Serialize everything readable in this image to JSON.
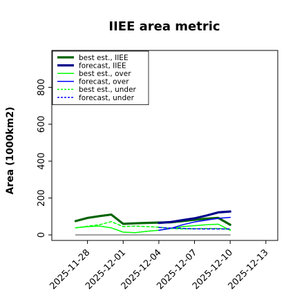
{
  "chart_data": {
    "type": "line",
    "title": "IIEE area metric",
    "xlabel": "",
    "ylabel": "Area (1000km2)",
    "xlim": [
      "2025-11-25",
      "2025-12-14"
    ],
    "ylim": [
      -30,
      1000
    ],
    "y_ticks": [
      0,
      200,
      400,
      600,
      800
    ],
    "x_ticks": [
      "2025-11-28",
      "2025-12-01",
      "2025-12-04",
      "2025-12-07",
      "2025-12-10",
      "2025-12-13"
    ],
    "highlighted_x_tick": "2025-12-04",
    "highlight_color": "#228B22",
    "legend_position": "upper-left",
    "grid": false,
    "series": [
      {
        "name": "best est., IIEE",
        "color": "#006400",
        "line_style": "solid",
        "line_weight": "thick",
        "x": [
          "2025-11-27",
          "2025-11-28",
          "2025-11-29",
          "2025-11-30",
          "2025-12-01",
          "2025-12-02",
          "2025-12-03",
          "2025-12-04",
          "2025-12-05",
          "2025-12-06",
          "2025-12-07",
          "2025-12-08",
          "2025-12-09",
          "2025-12-10"
        ],
        "values": [
          75,
          92,
          102,
          110,
          60,
          63,
          65,
          67,
          68,
          75,
          82,
          88,
          92,
          55
        ]
      },
      {
        "name": "forecast, IIEE",
        "color": "#00008B",
        "line_style": "solid",
        "line_weight": "thick",
        "x": [
          "2025-12-04",
          "2025-12-05",
          "2025-12-06",
          "2025-12-07",
          "2025-12-08",
          "2025-12-09",
          "2025-12-10"
        ],
        "values": [
          65,
          70,
          80,
          90,
          105,
          122,
          127
        ]
      },
      {
        "name": "best est., over",
        "color": "#00FF00",
        "line_style": "solid",
        "line_weight": "thin",
        "x": [
          "2025-11-27",
          "2025-11-28",
          "2025-11-29",
          "2025-11-30",
          "2025-12-01",
          "2025-12-02",
          "2025-12-03",
          "2025-12-04",
          "2025-12-05",
          "2025-12-06",
          "2025-12-07",
          "2025-12-08",
          "2025-12-09",
          "2025-12-10"
        ],
        "values": [
          38,
          45,
          48,
          38,
          15,
          12,
          20,
          25,
          35,
          45,
          50,
          55,
          58,
          25
        ]
      },
      {
        "name": "forecast, over",
        "color": "#0000FF",
        "line_style": "solid",
        "line_weight": "thin",
        "x": [
          "2025-12-04",
          "2025-12-05",
          "2025-12-06",
          "2025-12-07",
          "2025-12-08",
          "2025-12-09",
          "2025-12-10"
        ],
        "values": [
          25,
          35,
          55,
          70,
          80,
          90,
          95
        ]
      },
      {
        "name": "best est., under",
        "color": "#00FF00",
        "line_style": "dashed",
        "line_weight": "thin",
        "x": [
          "2025-11-27",
          "2025-11-28",
          "2025-11-29",
          "2025-11-30",
          "2025-12-01",
          "2025-12-02",
          "2025-12-03",
          "2025-12-04",
          "2025-12-05",
          "2025-12-06",
          "2025-12-07",
          "2025-12-08",
          "2025-12-09",
          "2025-12-10"
        ],
        "values": [
          38,
          47,
          55,
          72,
          45,
          48,
          45,
          42,
          35,
          32,
          33,
          35,
          35,
          30
        ]
      },
      {
        "name": "forecast, under",
        "color": "#0000FF",
        "line_style": "dashed",
        "line_weight": "thin",
        "x": [
          "2025-12-04",
          "2025-12-05",
          "2025-12-06",
          "2025-12-07",
          "2025-12-08",
          "2025-12-09",
          "2025-12-10"
        ],
        "values": [
          40,
          37,
          35,
          33,
          32,
          32,
          32
        ]
      },
      {
        "name": "",
        "color": "#808080",
        "line_style": "solid",
        "line_weight": "thin",
        "x": [
          "2025-11-27",
          "2025-12-10"
        ],
        "values": [
          0,
          0
        ]
      }
    ]
  }
}
